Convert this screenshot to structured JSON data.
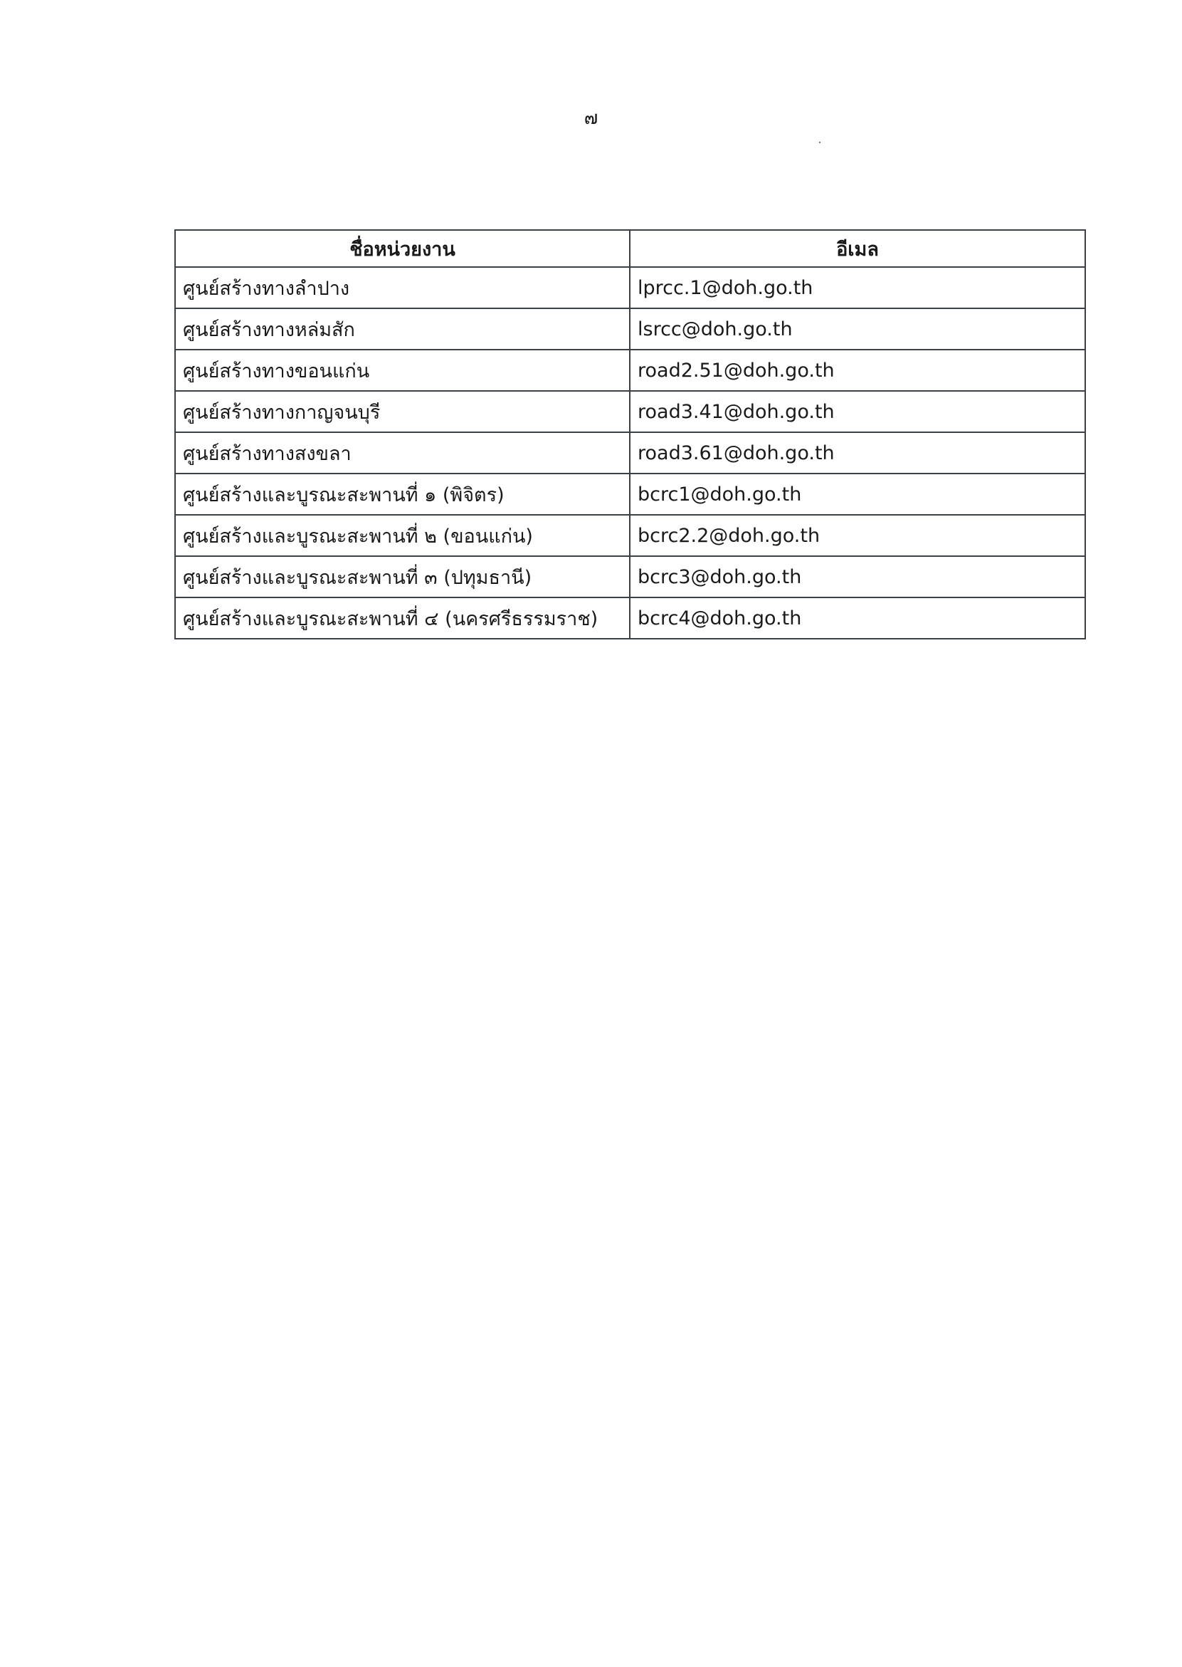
{
  "page_number": "๗",
  "table": {
    "headers": [
      "ชื่อหน่วยงาน",
      "อีเมล"
    ],
    "rows": [
      {
        "name": "ศูนย์สร้างทางลำปาง",
        "email": "lprcc.1@doh.go.th"
      },
      {
        "name": "ศูนย์สร้างทางหล่มสัก",
        "email": "lsrcc@doh.go.th"
      },
      {
        "name": "ศูนย์สร้างทางขอนแก่น",
        "email": "road2.51@doh.go.th"
      },
      {
        "name": "ศูนย์สร้างทางกาญจนบุรี",
        "email": "road3.41@doh.go.th"
      },
      {
        "name": "ศูนย์สร้างทางสงขลา",
        "email": "road3.61@doh.go.th"
      },
      {
        "name": "ศูนย์สร้างและบูรณะสะพานที่ ๑  (พิจิตร)",
        "email": "bcrc1@doh.go.th"
      },
      {
        "name": "ศูนย์สร้างและบูรณะสะพานที่ ๒  (ขอนแก่น)",
        "email": "bcrc2.2@doh.go.th"
      },
      {
        "name": "ศูนย์สร้างและบูรณะสะพานที่ ๓  (ปทุมธานี)",
        "email": "bcrc3@doh.go.th"
      },
      {
        "name": "ศูนย์สร้างและบูรณะสะพานที่ ๔ (นครศรีธรรมราช)",
        "email": "bcrc4@doh.go.th"
      }
    ]
  }
}
